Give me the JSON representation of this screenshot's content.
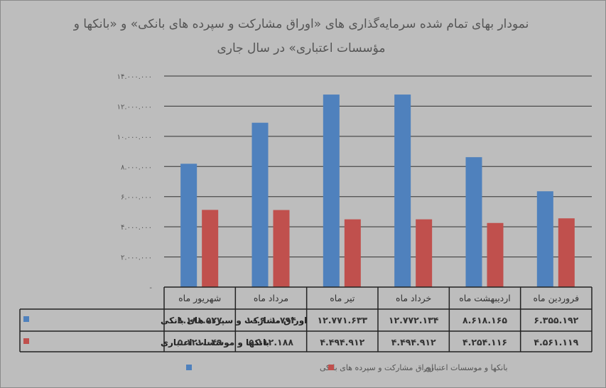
{
  "chart_data": {
    "type": "bar",
    "title_lines": [
      "نمودار بهای تمام شده سرمایه‌گذاری های «اوراق مشارکت و سپرده های بانکی» و «بانکها و",
      "مؤسسات اعتباری» در سال جاری"
    ],
    "categories": [
      "شهریور ماه",
      "مرداد ماه",
      "تیر ماه",
      "خرداد ماه",
      "اردیبهشت ماه",
      "فروردین ماه"
    ],
    "series": [
      {
        "name": "اوراق مشارکت و سپرده های بانکی",
        "color": "#4f81bd",
        "values": [
          8181527,
          10901794,
          12771633,
          12772134,
          8618165,
          6355192
        ],
        "labels": [
          "۸.۱۸۱.۵۲۷",
          "۱۰.۹۰۱.۷۹۴",
          "۱۲.۷۷۱.۶۳۳",
          "۱۲.۷۷۲.۱۳۴",
          "۸.۶۱۸.۱۶۵",
          "۶.۳۵۵.۱۹۲"
        ]
      },
      {
        "name": "بانکها و موسسات اعتباری",
        "color": "#c0504d",
        "values": [
          5121049,
          5112188,
          4494912,
          4494912,
          4254116,
          4561119
        ],
        "labels": [
          "۵.۱۲۱.۰۴۹",
          "۵.۱۱۲.۱۸۸",
          "۴.۴۹۴.۹۱۲",
          "۴.۴۹۴.۹۱۲",
          "۴.۲۵۴.۱۱۶",
          "۴.۵۶۱.۱۱۹"
        ]
      }
    ],
    "yticks": [
      0,
      2000000,
      4000000,
      6000000,
      8000000,
      10000000,
      12000000,
      14000000
    ],
    "ytick_labels": [
      "-",
      "۲.۰۰۰.۰۰۰",
      "۴.۰۰۰.۰۰۰",
      "۶.۰۰۰.۰۰۰",
      "۸.۰۰۰.۰۰۰",
      "۱۰.۰۰۰.۰۰۰",
      "۱۲.۰۰۰.۰۰۰",
      "۱۴.۰۰۰.۰۰۰"
    ],
    "ylim": [
      0,
      14000000
    ],
    "grid": true,
    "legend_position": "bottom",
    "data_table": true
  }
}
